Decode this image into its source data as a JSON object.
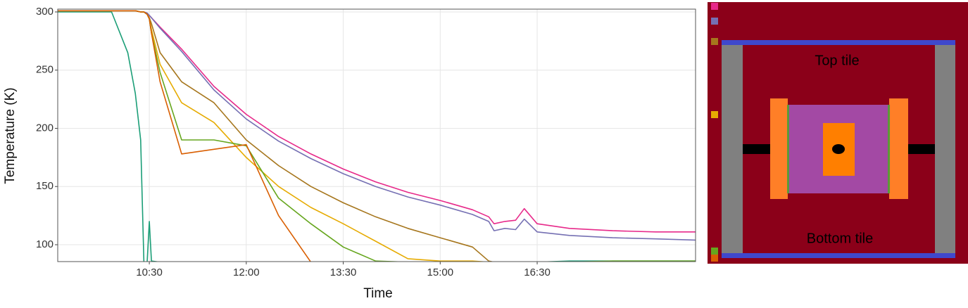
{
  "chart_data": {
    "type": "line",
    "x_label": "Time",
    "y_label": "Temperature (K)",
    "x": [
      545,
      595,
      610,
      617,
      622,
      625,
      628,
      630,
      632,
      640,
      660,
      690,
      720,
      750,
      780,
      810,
      840,
      870,
      900,
      930,
      945,
      950,
      960,
      970,
      978,
      990,
      1020,
      1060,
      1100,
      1137
    ],
    "series": [
      {
        "color": "#1b9e77",
        "values": [
          300,
          300,
          265,
          230,
          190,
          85,
          85,
          120,
          86,
          85,
          85,
          85,
          85,
          85,
          85,
          85,
          85,
          85,
          85,
          85,
          85,
          85,
          85,
          85,
          85,
          85,
          86,
          86,
          86,
          86
        ]
      },
      {
        "color": "#e7298a",
        "values": [
          301,
          301,
          301,
          301,
          300,
          300,
          299,
          297,
          295,
          287,
          268,
          236,
          212,
          193,
          178,
          165,
          154,
          145,
          138,
          130,
          124,
          118,
          120,
          121,
          131,
          118,
          114,
          112,
          111,
          111
        ]
      },
      {
        "color": "#7570b3",
        "values": [
          301,
          301,
          301,
          301,
          300,
          300,
          299,
          297,
          295,
          286,
          266,
          233,
          208,
          189,
          174,
          161,
          150,
          141,
          134,
          126,
          120,
          112,
          114,
          113,
          122,
          111,
          108,
          106,
          105,
          104
        ]
      },
      {
        "color": "#a6761d",
        "values": [
          301,
          301,
          301,
          301,
          300,
          300,
          298,
          295,
          290,
          265,
          240,
          222,
          190,
          168,
          150,
          136,
          124,
          114,
          106,
          98,
          86,
          85,
          85,
          85,
          85,
          85,
          85,
          85,
          85,
          85
        ]
      },
      {
        "color": "#e6ab02",
        "values": [
          301,
          301,
          301,
          301,
          300,
          300,
          298,
          294,
          285,
          255,
          222,
          205,
          175,
          150,
          132,
          118,
          103,
          88,
          86,
          86,
          85,
          85,
          85,
          85,
          85,
          85,
          85,
          85,
          85,
          85
        ]
      },
      {
        "color": "#66a61e",
        "values": [
          301,
          301,
          301,
          301,
          300,
          300,
          298,
          294,
          282,
          248,
          190,
          190,
          185,
          140,
          118,
          98,
          86,
          85,
          85,
          85,
          85,
          85,
          85,
          85,
          85,
          85,
          85,
          86,
          86,
          86
        ]
      },
      {
        "color": "#d95f02",
        "values": [
          301,
          301,
          301,
          301,
          300,
          300,
          298,
          294,
          282,
          240,
          178,
          182,
          186,
          125,
          85,
          85,
          85,
          85,
          85,
          85,
          85,
          85,
          85,
          85,
          85,
          85,
          85,
          85,
          85,
          85
        ]
      }
    ],
    "xlim": [
      545,
      1137
    ],
    "xticks": [
      {
        "value": 630,
        "label": "10:30"
      },
      {
        "value": 720,
        "label": "12:00"
      },
      {
        "value": 810,
        "label": "13:30"
      },
      {
        "value": 900,
        "label": "15:00"
      },
      {
        "value": 990,
        "label": "16:30"
      }
    ],
    "ylim": [
      85.5,
      302.4
    ],
    "yticks": [
      100,
      150,
      200,
      250,
      300
    ],
    "grid": true
  },
  "diagram": {
    "labels": [
      "Top tile",
      "Bottom tile"
    ]
  }
}
